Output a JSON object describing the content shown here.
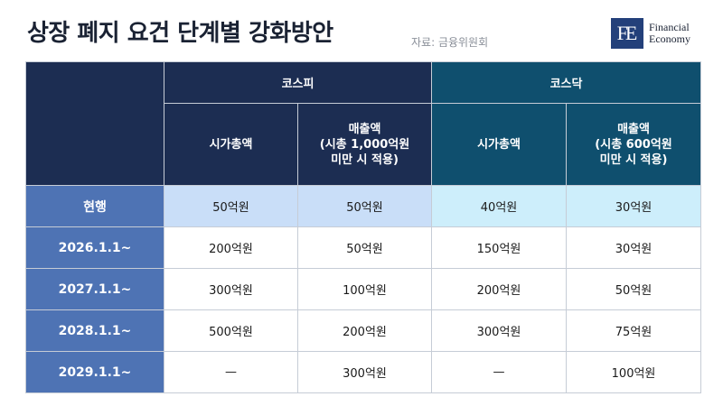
{
  "header": {
    "title": "상장 폐지 요건 단계별 강화방안",
    "source": "자료: 금융위원회"
  },
  "logo": {
    "mark": "FE",
    "line1": "Financial",
    "line2": "Economy"
  },
  "table": {
    "groups": [
      "코스피",
      "코스닥"
    ],
    "metrics": [
      "시가총액",
      "매출액\n(시총 1,000억원\n미만 시 적용)",
      "시가총액",
      "매출액\n(시총 600억원\n미만 시 적용)"
    ],
    "rows": [
      {
        "label": "현행",
        "values": [
          "50억원",
          "50억원",
          "40억원",
          "30억원"
        ]
      },
      {
        "label": "2026.1.1~",
        "values": [
          "200억원",
          "50억원",
          "150억원",
          "30억원"
        ]
      },
      {
        "label": "2027.1.1~",
        "values": [
          "300억원",
          "100억원",
          "200억원",
          "50억원"
        ]
      },
      {
        "label": "2028.1.1~",
        "values": [
          "500억원",
          "200억원",
          "300억원",
          "75억원"
        ]
      },
      {
        "label": "2029.1.1~",
        "values": [
          "—",
          "300억원",
          "—",
          "100억원"
        ]
      }
    ]
  },
  "colors": {
    "kospi_header": "#1c2d52",
    "kosdaq_header": "#0f4f6e",
    "row_header": "#4e73b4",
    "current_kospi": "#c9def8",
    "current_kosdaq": "#cdeefb"
  }
}
